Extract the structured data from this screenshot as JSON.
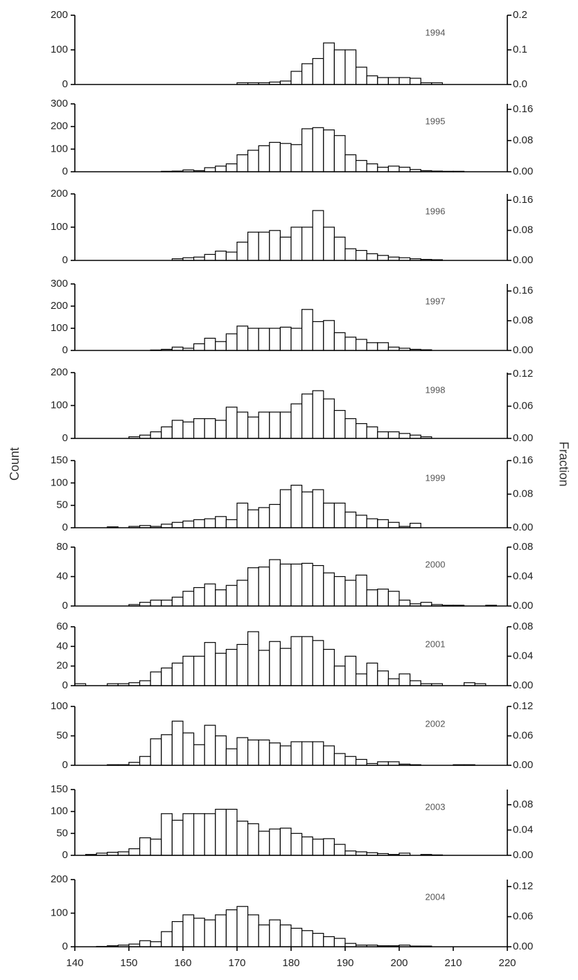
{
  "y_label": "Count",
  "y2_label": "Fraction",
  "chart_data": [
    {
      "type": "histogram",
      "title": "1994",
      "color": "#ffffff",
      "bins": [
        140,
        142,
        144,
        146,
        148,
        150,
        152,
        154,
        156,
        158,
        160,
        162,
        164,
        166,
        168,
        170,
        172,
        174,
        176,
        178,
        180,
        182,
        184,
        186,
        188,
        190,
        192,
        194,
        196,
        198,
        200,
        202,
        204,
        206,
        208,
        210,
        212,
        214,
        216,
        218,
        220
      ],
      "values": [
        0,
        0,
        0,
        0,
        0,
        0,
        0,
        0,
        0,
        0,
        0,
        0,
        0,
        0,
        0,
        5,
        5,
        5,
        7,
        10,
        38,
        60,
        75,
        120,
        100,
        100,
        50,
        25,
        20,
        20,
        20,
        18,
        5,
        5,
        0,
        0,
        0,
        0,
        0,
        0
      ],
      "xlim": [
        140,
        220
      ],
      "ylim": [
        0,
        200
      ],
      "yticks": [
        0,
        100,
        200
      ],
      "y2lim": [
        0,
        0.2
      ],
      "y2ticks": [
        {
          "value": 0,
          "label": "0.0"
        },
        0.1,
        0.2
      ]
    },
    {
      "type": "histogram",
      "title": "1995",
      "color": "#ffffff",
      "bins": [
        140,
        142,
        144,
        146,
        148,
        150,
        152,
        154,
        156,
        158,
        160,
        162,
        164,
        166,
        168,
        170,
        172,
        174,
        176,
        178,
        180,
        182,
        184,
        186,
        188,
        190,
        192,
        194,
        196,
        198,
        200,
        202,
        204,
        206,
        208,
        210,
        212,
        214,
        216,
        218,
        220
      ],
      "values": [
        0,
        0,
        0,
        0,
        0,
        0,
        0,
        0,
        2,
        3,
        8,
        5,
        18,
        25,
        35,
        75,
        95,
        115,
        130,
        125,
        120,
        190,
        195,
        185,
        160,
        75,
        50,
        35,
        20,
        25,
        20,
        10,
        5,
        3,
        2,
        2,
        0,
        0,
        0,
        0
      ],
      "xlim": [
        140,
        220
      ],
      "ylim": [
        0,
        300
      ],
      "yticks": [
        0,
        100,
        200,
        300
      ],
      "y2lim": [
        0,
        0.174
      ],
      "y2ticks": [
        {
          "value": 0,
          "label": "0.00"
        },
        0.08,
        0.16
      ]
    },
    {
      "type": "histogram",
      "title": "1996",
      "color": "#ffffff",
      "bins": [
        140,
        142,
        144,
        146,
        148,
        150,
        152,
        154,
        156,
        158,
        160,
        162,
        164,
        166,
        168,
        170,
        172,
        174,
        176,
        178,
        180,
        182,
        184,
        186,
        188,
        190,
        192,
        194,
        196,
        198,
        200,
        202,
        204,
        206,
        208,
        210,
        212,
        214,
        216,
        218,
        220
      ],
      "values": [
        0,
        0,
        0,
        0,
        0,
        0,
        0,
        0,
        0,
        5,
        8,
        10,
        18,
        28,
        25,
        55,
        85,
        85,
        90,
        70,
        100,
        100,
        150,
        100,
        70,
        35,
        30,
        20,
        15,
        10,
        8,
        5,
        3,
        2,
        0,
        0,
        0,
        0,
        0,
        0
      ],
      "xlim": [
        140,
        220
      ],
      "ylim": [
        0,
        200
      ],
      "yticks": [
        0,
        100,
        200
      ],
      "y2lim": [
        0,
        0.177
      ],
      "y2ticks": [
        {
          "value": 0,
          "label": "0.00"
        },
        0.08,
        0.16
      ]
    },
    {
      "type": "histogram",
      "title": "1997",
      "color": "#ffffff",
      "bins": [
        140,
        142,
        144,
        146,
        148,
        150,
        152,
        154,
        156,
        158,
        160,
        162,
        164,
        166,
        168,
        170,
        172,
        174,
        176,
        178,
        180,
        182,
        184,
        186,
        188,
        190,
        192,
        194,
        196,
        198,
        200,
        202,
        204,
        206,
        208,
        210,
        212,
        214,
        216,
        218,
        220
      ],
      "values": [
        0,
        0,
        0,
        0,
        0,
        0,
        0,
        2,
        5,
        15,
        10,
        30,
        55,
        40,
        75,
        110,
        100,
        100,
        100,
        105,
        100,
        185,
        130,
        135,
        80,
        60,
        50,
        35,
        35,
        15,
        10,
        5,
        3,
        0,
        0,
        0,
        0,
        0,
        0,
        0
      ],
      "xlim": [
        140,
        220
      ],
      "ylim": [
        0,
        300
      ],
      "yticks": [
        0,
        100,
        200,
        300
      ],
      "y2lim": [
        0,
        0.179
      ],
      "y2ticks": [
        {
          "value": 0,
          "label": "0.00"
        },
        0.08,
        0.16
      ]
    },
    {
      "type": "histogram",
      "title": "1998",
      "color": "#ffffff",
      "bins": [
        140,
        142,
        144,
        146,
        148,
        150,
        152,
        154,
        156,
        158,
        160,
        162,
        164,
        166,
        168,
        170,
        172,
        174,
        176,
        178,
        180,
        182,
        184,
        186,
        188,
        190,
        192,
        194,
        196,
        198,
        200,
        202,
        204,
        206,
        208,
        210,
        212,
        214,
        216,
        218,
        220
      ],
      "values": [
        0,
        0,
        0,
        0,
        0,
        5,
        10,
        20,
        35,
        55,
        50,
        60,
        60,
        55,
        95,
        80,
        65,
        80,
        80,
        80,
        105,
        135,
        145,
        120,
        85,
        60,
        45,
        35,
        20,
        20,
        15,
        10,
        5,
        0,
        0,
        0,
        0,
        0,
        0,
        0
      ],
      "xlim": [
        140,
        220
      ],
      "ylim": [
        0,
        200
      ],
      "yticks": [
        0,
        100,
        200
      ],
      "y2lim": [
        0,
        0.1226
      ],
      "y2ticks": [
        {
          "value": 0,
          "label": "0.00"
        },
        0.06,
        0.12
      ]
    },
    {
      "type": "histogram",
      "title": "1999",
      "color": "#ffffff",
      "bins": [
        140,
        142,
        144,
        146,
        148,
        150,
        152,
        154,
        156,
        158,
        160,
        162,
        164,
        166,
        168,
        170,
        172,
        174,
        176,
        178,
        180,
        182,
        184,
        186,
        188,
        190,
        192,
        194,
        196,
        198,
        200,
        202,
        204,
        206,
        208,
        210,
        212,
        214,
        216,
        218,
        220
      ],
      "values": [
        0,
        0,
        0,
        2,
        0,
        3,
        5,
        3,
        8,
        12,
        15,
        18,
        20,
        25,
        18,
        55,
        40,
        45,
        52,
        85,
        95,
        80,
        85,
        55,
        55,
        35,
        28,
        20,
        18,
        12,
        3,
        10,
        0,
        0,
        0,
        0,
        0,
        0,
        0,
        0
      ],
      "xlim": [
        140,
        220
      ],
      "ylim": [
        0,
        150
      ],
      "yticks": [
        0,
        50,
        100,
        150
      ],
      "y2lim": [
        0,
        0.16
      ],
      "y2ticks": [
        {
          "value": 0,
          "label": "0.00"
        },
        0.08,
        0.16
      ]
    },
    {
      "type": "histogram",
      "title": "2000",
      "color": "#ffffff",
      "bins": [
        140,
        142,
        144,
        146,
        148,
        150,
        152,
        154,
        156,
        158,
        160,
        162,
        164,
        166,
        168,
        170,
        172,
        174,
        176,
        178,
        180,
        182,
        184,
        186,
        188,
        190,
        192,
        194,
        196,
        198,
        200,
        202,
        204,
        206,
        208,
        210,
        212,
        214,
        216,
        218,
        220
      ],
      "values": [
        0,
        0,
        0,
        0,
        0,
        2,
        5,
        8,
        8,
        12,
        20,
        25,
        30,
        22,
        28,
        35,
        52,
        53,
        63,
        57,
        57,
        58,
        55,
        45,
        40,
        35,
        42,
        22,
        23,
        20,
        8,
        3,
        5,
        2,
        1,
        1,
        0,
        0,
        1,
        0
      ],
      "xlim": [
        140,
        220
      ],
      "ylim": [
        0,
        80
      ],
      "yticks": [
        0,
        40,
        80
      ],
      "y2lim": [
        0,
        0.08
      ],
      "y2ticks": [
        {
          "value": 0,
          "label": "0.00"
        },
        0.04,
        0.08
      ]
    },
    {
      "type": "histogram",
      "title": "2001",
      "color": "#ffffff",
      "bins": [
        140,
        142,
        144,
        146,
        148,
        150,
        152,
        154,
        156,
        158,
        160,
        162,
        164,
        166,
        168,
        170,
        172,
        174,
        176,
        178,
        180,
        182,
        184,
        186,
        188,
        190,
        192,
        194,
        196,
        198,
        200,
        202,
        204,
        206,
        208,
        210,
        212,
        214,
        216,
        218,
        220
      ],
      "values": [
        2,
        0,
        0,
        2,
        2,
        3,
        5,
        14,
        18,
        23,
        30,
        30,
        44,
        33,
        37,
        42,
        55,
        36,
        45,
        38,
        50,
        50,
        46,
        37,
        20,
        30,
        12,
        23,
        15,
        7,
        12,
        5,
        2,
        2,
        0,
        0,
        3,
        2,
        0,
        0
      ],
      "xlim": [
        140,
        220
      ],
      "ylim": [
        0,
        60
      ],
      "yticks": [
        0,
        20,
        40,
        60
      ],
      "y2lim": [
        0,
        0.08
      ],
      "y2ticks": [
        {
          "value": 0,
          "label": "0.00"
        },
        0.04,
        0.08
      ]
    },
    {
      "type": "histogram",
      "title": "2002",
      "color": "#ffffff",
      "bins": [
        140,
        142,
        144,
        146,
        148,
        150,
        152,
        154,
        156,
        158,
        160,
        162,
        164,
        166,
        168,
        170,
        172,
        174,
        176,
        178,
        180,
        182,
        184,
        186,
        188,
        190,
        192,
        194,
        196,
        198,
        200,
        202,
        204,
        206,
        208,
        210,
        212,
        214,
        216,
        218,
        220
      ],
      "values": [
        0,
        0,
        0,
        1,
        1,
        5,
        15,
        45,
        52,
        75,
        55,
        35,
        68,
        50,
        28,
        47,
        43,
        43,
        38,
        33,
        40,
        40,
        40,
        33,
        20,
        15,
        10,
        3,
        6,
        6,
        2,
        1,
        0,
        0,
        0,
        1,
        1,
        0,
        0,
        0
      ],
      "xlim": [
        140,
        220
      ],
      "ylim": [
        0,
        100
      ],
      "yticks": [
        0,
        50,
        100
      ],
      "y2lim": [
        0,
        0.12
      ],
      "y2ticks": [
        {
          "value": 0,
          "label": "0.00"
        },
        0.06,
        0.12
      ]
    },
    {
      "type": "histogram",
      "title": "2003",
      "color": "#ffffff",
      "bins": [
        140,
        142,
        144,
        146,
        148,
        150,
        152,
        154,
        156,
        158,
        160,
        162,
        164,
        166,
        168,
        170,
        172,
        174,
        176,
        178,
        180,
        182,
        184,
        186,
        188,
        190,
        192,
        194,
        196,
        198,
        200,
        202,
        204,
        206,
        208,
        210,
        212,
        214,
        216,
        218,
        220
      ],
      "values": [
        0,
        2,
        5,
        7,
        8,
        15,
        40,
        37,
        95,
        80,
        95,
        95,
        95,
        105,
        105,
        78,
        72,
        55,
        60,
        62,
        50,
        42,
        37,
        38,
        25,
        10,
        8,
        6,
        4,
        2,
        5,
        0,
        2,
        1,
        0,
        0,
        0,
        0,
        0,
        0
      ],
      "xlim": [
        140,
        220
      ],
      "ylim": [
        0,
        150
      ],
      "yticks": [
        0,
        50,
        100,
        150
      ],
      "y2lim": [
        0,
        0.104
      ],
      "y2ticks": [
        {
          "value": 0,
          "label": "0.00"
        },
        0.04,
        0.08
      ]
    },
    {
      "type": "histogram",
      "title": "2004",
      "color": "#ffffff",
      "bins": [
        140,
        142,
        144,
        146,
        148,
        150,
        152,
        154,
        156,
        158,
        160,
        162,
        164,
        166,
        168,
        170,
        172,
        174,
        176,
        178,
        180,
        182,
        184,
        186,
        188,
        190,
        192,
        194,
        196,
        198,
        200,
        202,
        204,
        206,
        208,
        210,
        212,
        214,
        216,
        218,
        220
      ],
      "values": [
        0,
        0,
        1,
        3,
        5,
        8,
        18,
        15,
        45,
        75,
        95,
        85,
        80,
        95,
        110,
        120,
        95,
        65,
        80,
        65,
        55,
        48,
        40,
        30,
        25,
        10,
        5,
        5,
        3,
        3,
        5,
        2,
        2,
        0,
        0,
        0,
        0,
        0,
        0,
        0
      ],
      "xlim": [
        140,
        220
      ],
      "xticks": [
        140,
        150,
        160,
        170,
        180,
        190,
        200,
        210,
        220
      ],
      "ylim": [
        0,
        200
      ],
      "yticks": [
        0,
        100,
        200
      ],
      "y2lim": [
        0,
        0.134
      ],
      "y2ticks": [
        {
          "value": 0,
          "label": "0.00"
        },
        0.06,
        0.12
      ]
    }
  ]
}
